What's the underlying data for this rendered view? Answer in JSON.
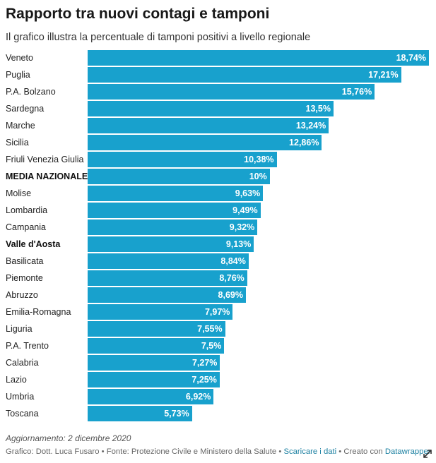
{
  "chart_data": {
    "type": "bar",
    "orientation": "horizontal",
    "title": "Rapporto tra nuovi contagi e tamponi",
    "subtitle": "Il grafico illustra la percentuale di tamponi positivi a livello regionale",
    "bar_color": "#18a1cd",
    "xlim": [
      0,
      18.74
    ],
    "categories": [
      "Veneto",
      "Puglia",
      "P.A. Bolzano",
      "Sardegna",
      "Marche",
      "Sicilia",
      "Friuli Venezia Giulia",
      "MEDIA NAZIONALE",
      "Molise",
      "Lombardia",
      "Campania",
      "Valle d'Aosta",
      "Basilicata",
      "Piemonte",
      "Abruzzo",
      "Emilia-Romagna",
      "Liguria",
      "P.A. Trento",
      "Calabria",
      "Lazio",
      "Umbria",
      "Toscana"
    ],
    "values": [
      18.74,
      17.21,
      15.76,
      13.5,
      13.24,
      12.86,
      10.38,
      10,
      9.63,
      9.49,
      9.32,
      9.13,
      8.84,
      8.76,
      8.69,
      7.97,
      7.55,
      7.5,
      7.27,
      7.25,
      6.92,
      5.73
    ],
    "value_labels": [
      "18,74%",
      "17,21%",
      "15,76%",
      "13,5%",
      "13,24%",
      "12,86%",
      "10,38%",
      "10%",
      "9,63%",
      "9,49%",
      "9,32%",
      "9,13%",
      "8,84%",
      "8,76%",
      "8,69%",
      "7,97%",
      "7,55%",
      "7,5%",
      "7,27%",
      "7,25%",
      "6,92%",
      "5,73%"
    ],
    "bold_categories": [
      "MEDIA NAZIONALE",
      "Valle d'Aosta"
    ]
  },
  "notes": "Aggiornamento: 2 dicembre 2020",
  "footer": {
    "credits": "Grafico: Dott. Luca Fusaro • Fonte: Protezione Civile e Ministero della Salute • ",
    "download_link": "Scaricare i dati",
    "separator": " • Creato con ",
    "datawrapper_link": "Datawrapper"
  },
  "icons": {
    "expand": "expand-icon"
  }
}
